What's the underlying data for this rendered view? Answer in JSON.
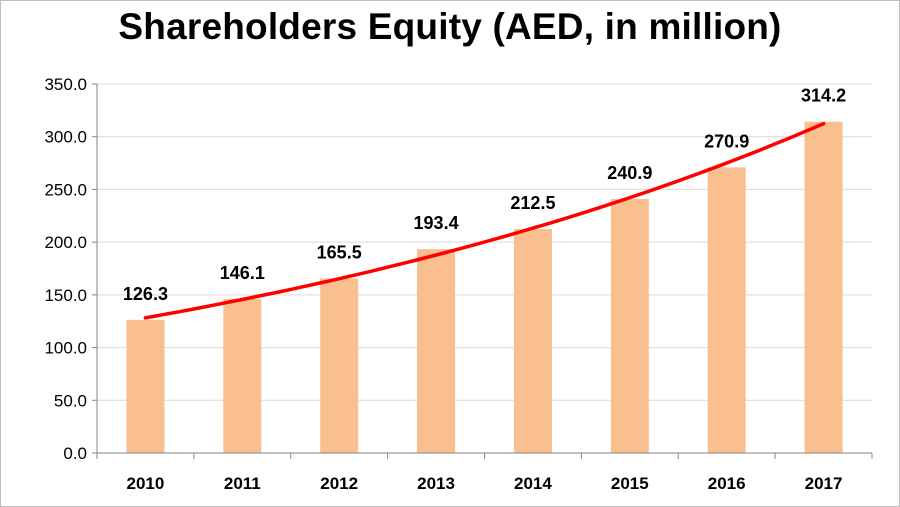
{
  "chart_data": {
    "type": "bar",
    "title": "Shareholders Equity (AED, in million)",
    "categories": [
      "2010",
      "2011",
      "2012",
      "2013",
      "2014",
      "2015",
      "2016",
      "2017"
    ],
    "values": [
      126.3,
      146.1,
      165.5,
      193.4,
      212.5,
      240.9,
      270.9,
      314.2
    ],
    "data_labels": [
      "126.3",
      "146.1",
      "165.5",
      "193.4",
      "212.5",
      "240.9",
      "270.9",
      "314.2"
    ],
    "y_ticks": [
      "0.0",
      "50.0",
      "100.0",
      "150.0",
      "200.0",
      "250.0",
      "300.0",
      "350.0"
    ],
    "ylim": [
      0,
      350
    ],
    "grid": true,
    "legend": "none",
    "trendline": {
      "type": "exponential",
      "color": "#ff0000"
    },
    "colors": {
      "bar": "#f9bf8f",
      "trend": "#ff0000",
      "grid": "#d9d9d9",
      "axis": "#868686"
    }
  }
}
